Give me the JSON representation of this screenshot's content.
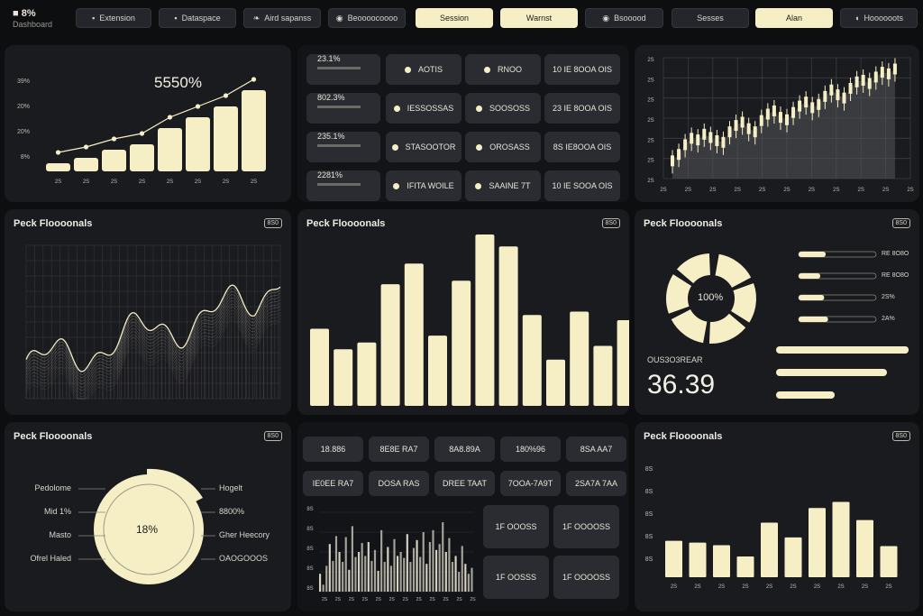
{
  "colors": {
    "bg": "#0d0e10",
    "card": "#1a1b1f",
    "tile": "#2a2c31",
    "accent": "#f6efc6",
    "muted": "#6a6a66"
  },
  "header": {
    "brand_primary": "8%",
    "brand_secondary": "Dashboard",
    "nav": [
      {
        "label": "Extension",
        "icon": "square-icon",
        "style": "dark"
      },
      {
        "label": "Dataspace",
        "icon": "square-icon",
        "style": "dark"
      },
      {
        "label": "Aird sapanss",
        "icon": "leaf-icon",
        "style": "dark"
      },
      {
        "label": "Beoooocoooo",
        "icon": "circle-icon",
        "style": "dark"
      },
      {
        "label": "Session",
        "icon": "",
        "style": "light"
      },
      {
        "label": "Warnst",
        "icon": "",
        "style": "light"
      },
      {
        "label": "Bsooood",
        "icon": "circle-icon",
        "style": "dark"
      },
      {
        "label": "Sesses",
        "icon": "",
        "style": "dark"
      },
      {
        "label": "Alan",
        "icon": "",
        "style": "light"
      },
      {
        "label": "Hoooooots",
        "icon": "oval-icon",
        "style": "dark"
      }
    ]
  },
  "panel_growth": {
    "headline": "5550%",
    "ylabels": [
      "39%",
      "20%",
      "20%",
      "8%"
    ],
    "xlabels": [
      "2S",
      "2S",
      "2S",
      "2S",
      "2S",
      "2S",
      "2S",
      "2S"
    ],
    "values": [
      3,
      5,
      8,
      10,
      16,
      20,
      24,
      30
    ],
    "ymax": 36
  },
  "panel_stats": {
    "rows": [
      {
        "metric": "23.1%",
        "a": "AOTIS",
        "b": "RNOO",
        "c": "10 IE 8OOA OIS"
      },
      {
        "metric": "802.3%",
        "a": "IESSOSSAS",
        "b": "SOOSOSS",
        "c": "23 IE 8OOA OIS"
      },
      {
        "metric": "235.1%",
        "a": "STASOOTOR",
        "b": "OROSASS",
        "c": "8S IE8OOA OIS"
      },
      {
        "metric": "2281%",
        "a": "IFITA WOILE",
        "b": "SAAINE 7T",
        "c": "10 IE SOOA OIS"
      }
    ]
  },
  "panel_candles": {
    "ylabels": [
      "2S",
      "2S",
      "2S",
      "2S",
      "2S",
      "2S",
      "2S"
    ],
    "xlabels": [
      "2S",
      "2S",
      "2S",
      "2S",
      "2S",
      "2S",
      "2S",
      "2S",
      "2S",
      "2S",
      "2S"
    ],
    "values": [
      22,
      30,
      42,
      50,
      48,
      55,
      51,
      47,
      45,
      58,
      66,
      70,
      62,
      58,
      72,
      80,
      84,
      76,
      73,
      82,
      90,
      95,
      88,
      92,
      102,
      110,
      104,
      100,
      112,
      120,
      122,
      118,
      126,
      132,
      130,
      136
    ],
    "ymax": 150
  },
  "panel_wave": {
    "title": "Peck Floooonals",
    "badge": "8S0"
  },
  "panel_bars": {
    "title": "Peck Floooonals",
    "badge": "8S0",
    "values": [
      45,
      33,
      37,
      71,
      83,
      41,
      73,
      100,
      93,
      53,
      27,
      55,
      35,
      50
    ],
    "ymax": 100
  },
  "panel_donut": {
    "title": "Peck Floooonals",
    "badge": "8S0",
    "center": "100%",
    "metric_label": "OUS3O3REAR",
    "metric_value": "36.39",
    "progress": [
      {
        "label": "RE 8O8O",
        "value": 0.35
      },
      {
        "label": "RE 8O8O",
        "value": 0.28
      },
      {
        "label": "2S%",
        "value": 0.33
      },
      {
        "label": "2A%",
        "value": 0.38
      }
    ]
  },
  "panel_pie": {
    "title": "Peck Floooonals",
    "badge": "8S0",
    "center": "18%",
    "left_labels": [
      "Pedolome",
      "Mid 1%",
      "Masto",
      "Ofrel Haled"
    ],
    "right_labels": [
      "Hogelt",
      "8800%",
      "Gher Heecory",
      "OAOGOOOS"
    ]
  },
  "panel_mixed": {
    "tiles_top": [
      "18.886",
      "8E8E RA7",
      "8A8.89A",
      "180%96",
      "8SA AA7"
    ],
    "tiles_mid": [
      "IE0EE RA7",
      "DOSA RAS",
      "DREE TAAT",
      "7OOA-7A9T",
      "2SA7A 7AA"
    ],
    "tiles_right": [
      "1F OOOSS",
      "1F OOOOSS",
      "1F OOSSS",
      "1F OOOOSS"
    ],
    "ylabels": [
      "8S",
      "8S",
      "8S",
      "8S",
      "8S"
    ],
    "xlabels": [
      "2S",
      "2S",
      "2S",
      "2S",
      "2S",
      "2S",
      "2S",
      "2S",
      "2S",
      "2S",
      "2S",
      "2S"
    ],
    "values": [
      18,
      7,
      26,
      48,
      31,
      56,
      40,
      30,
      55,
      22,
      66,
      35,
      40,
      49,
      36,
      50,
      31,
      42,
      21,
      62,
      30,
      45,
      26,
      53,
      36,
      40,
      34,
      58,
      30,
      44,
      52,
      35,
      60,
      28,
      50,
      62,
      42,
      48,
      70,
      40,
      54,
      30,
      36,
      20,
      46,
      28,
      18,
      24
    ],
    "ymax": 80
  },
  "panel_bars2": {
    "title": "Peck Floooonals",
    "badge": "8S0",
    "ylabels": [
      "8S",
      "8S",
      "8S",
      "8S",
      "8S"
    ],
    "xlabels": [
      "2S",
      "2S",
      "2S",
      "2S",
      "2S",
      "2S",
      "2S",
      "2S",
      "2S",
      "2S"
    ],
    "values": [
      42,
      40,
      37,
      24,
      63,
      46,
      80,
      87,
      66,
      36
    ],
    "ymax": 100
  }
}
